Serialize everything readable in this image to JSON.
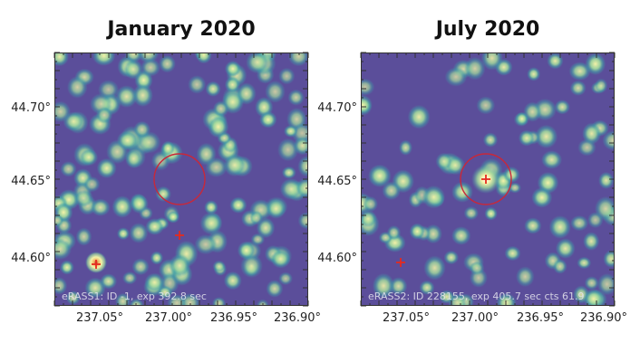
{
  "panels": [
    {
      "title": "January 2020",
      "caption": "eRASS1: ID -1, exp 392.8 sec",
      "yticks": [
        "44.70°",
        "44.65°",
        "44.60°"
      ],
      "xticks": [
        "237.05°",
        "237.00°",
        "236.95°",
        "236.90°"
      ]
    },
    {
      "title": "July 2020",
      "caption": "eRASS2: ID 228155, exp 405.7 sec cts 61.9",
      "yticks": [
        "44.70°",
        "44.65°",
        "44.60°"
      ],
      "xticks": [
        "237.05°",
        "237.00°",
        "236.95°",
        "236.90°"
      ]
    }
  ],
  "colors": {
    "background": "#5b4e9a",
    "blob_inner": "#f5f3a8",
    "blob_mid": "#9fd79d",
    "blob_outer": "#3fa3a8",
    "circle": "#c8283a",
    "marker": "#e52a1f"
  }
}
